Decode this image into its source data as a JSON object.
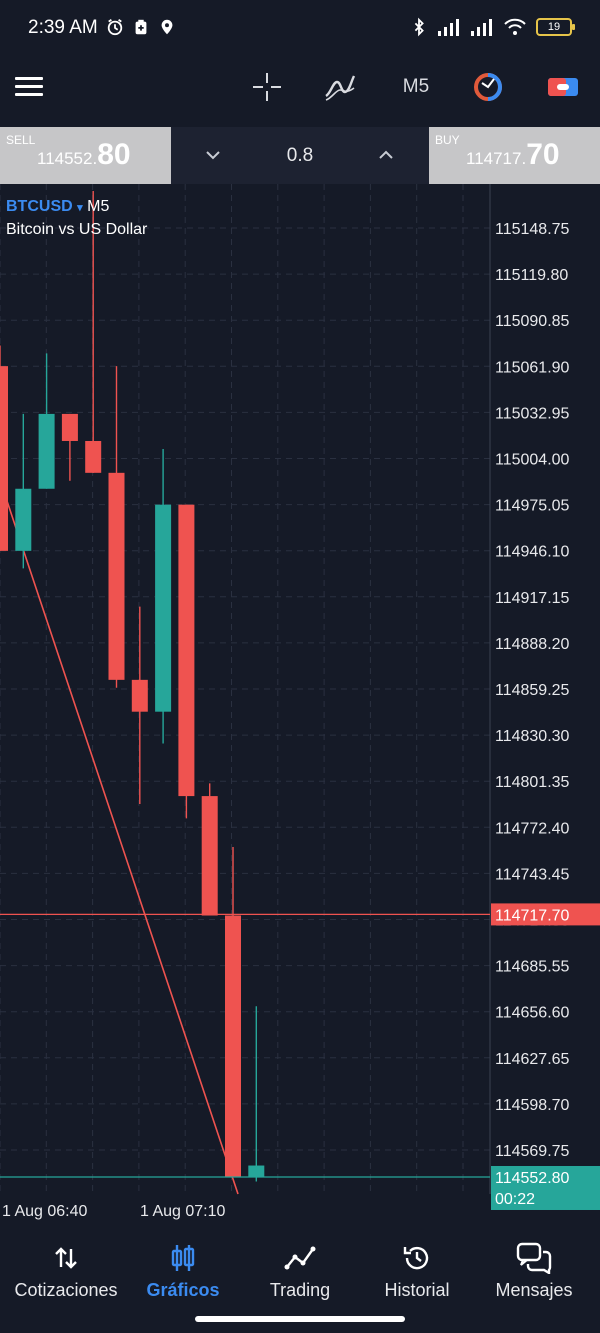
{
  "status_bar": {
    "time": "2:39 AM",
    "battery": "19"
  },
  "toolbar": {
    "timeframe": "M5"
  },
  "trade": {
    "sell_label": "SELL",
    "sell_price_small": "114552.",
    "sell_price_big": "80",
    "buy_label": "BUY",
    "buy_price_small": "114717.",
    "buy_price_big": "70",
    "lot": "0.8"
  },
  "chart": {
    "symbol": "BTCUSD",
    "symbol_arrow": "▾",
    "timeframe": "M5",
    "description": "Bitcoin vs US Dollar",
    "price_labels": [
      "115148.75",
      "115119.80",
      "115090.85",
      "115061.90",
      "115032.95",
      "115004.00",
      "114975.05",
      "114946.10",
      "114917.15",
      "114888.20",
      "114859.25",
      "114830.30",
      "114801.35",
      "114772.40",
      "114743.45",
      "114714.50",
      "114685.55",
      "114656.60",
      "114627.65",
      "114598.70",
      "114569.75"
    ],
    "bid_tag": "114552.80",
    "countdown": "00:22",
    "ask_tag": "114717.70",
    "time_labels": [
      "1 Aug 06:40",
      "1 Aug 07:10"
    ],
    "colors": {
      "bull": "#26a69a",
      "bear": "#ef5350",
      "grid": "#2a3040",
      "bg": "#151a27"
    }
  },
  "chart_data": {
    "type": "candlestick",
    "symbol": "BTCUSD",
    "timeframe": "M5",
    "candles": [
      {
        "open": 115062,
        "high": 115075,
        "low": 114946,
        "close": 114946
      },
      {
        "open": 114946,
        "high": 115032,
        "low": 114935,
        "close": 114985
      },
      {
        "open": 114985,
        "high": 115070,
        "low": 114985,
        "close": 115032
      },
      {
        "open": 115032,
        "high": 115032,
        "low": 114990,
        "close": 115015
      },
      {
        "open": 115015,
        "high": 115172,
        "low": 114995,
        "close": 114995
      },
      {
        "open": 114995,
        "high": 115062,
        "low": 114860,
        "close": 114865
      },
      {
        "open": 114865,
        "high": 114911,
        "low": 114787,
        "close": 114845
      },
      {
        "open": 114845,
        "high": 115010,
        "low": 114825,
        "close": 114975
      },
      {
        "open": 114975,
        "high": 114975,
        "low": 114778,
        "close": 114792
      },
      {
        "open": 114792,
        "high": 114800,
        "low": 114717,
        "close": 114717
      },
      {
        "open": 114717,
        "high": 114760,
        "low": 114553,
        "close": 114553
      },
      {
        "open": 114553,
        "high": 114660,
        "low": 114550,
        "close": 114560
      }
    ],
    "bid": 114552.8,
    "ask": 114717.7,
    "ylim": [
      114550,
      115175
    ],
    "x_ticks": [
      "1 Aug 06:40",
      "1 Aug 07:10"
    ]
  }
}
